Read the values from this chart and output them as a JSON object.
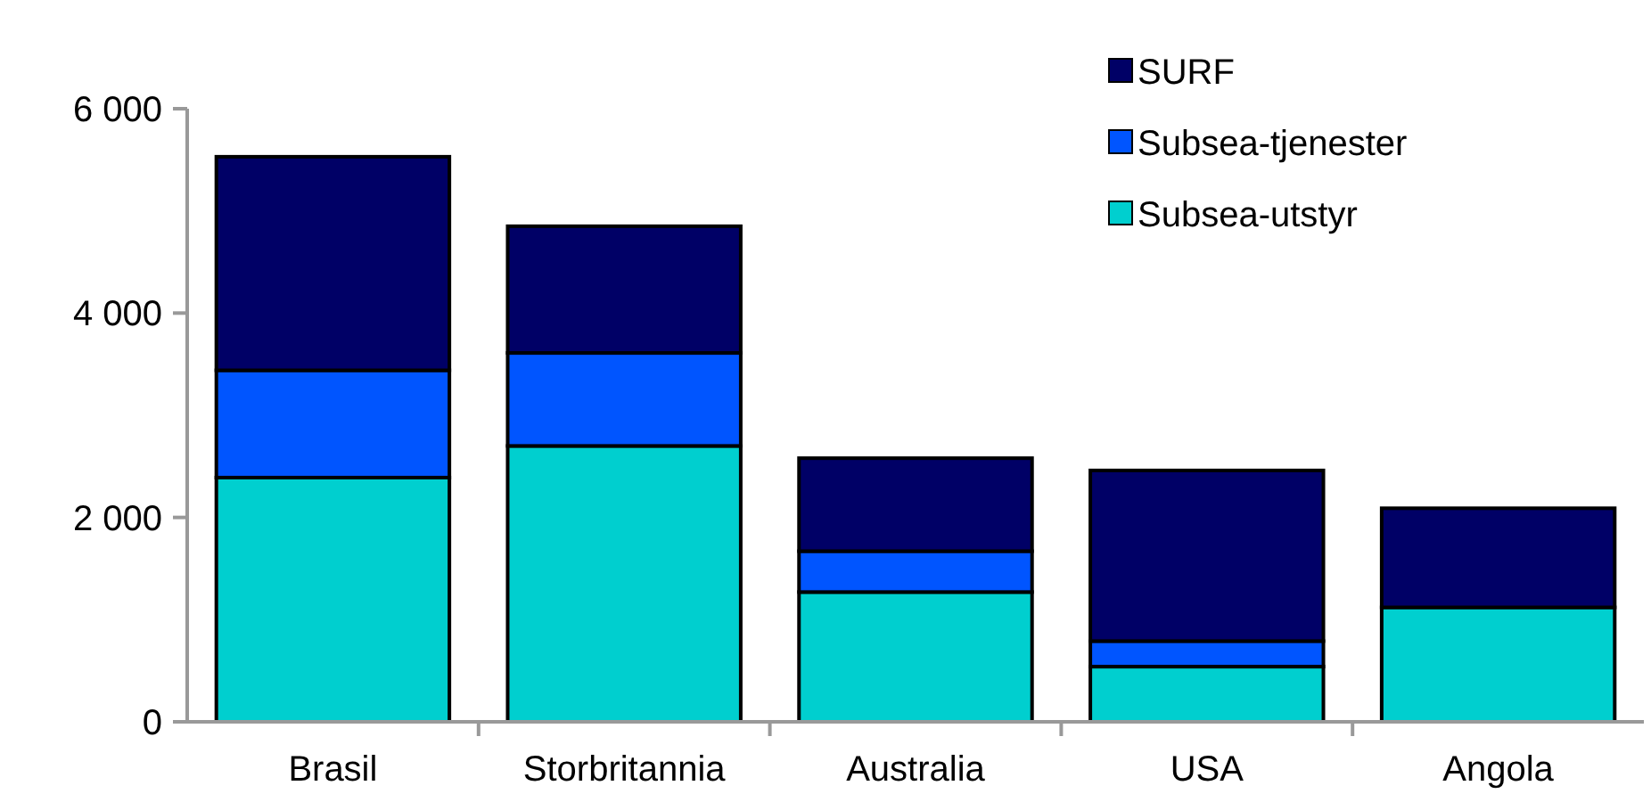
{
  "chart_data": {
    "type": "bar",
    "stacked": true,
    "categories": [
      "Brasil",
      "Storbritannia",
      "Australia",
      "USA",
      "Angola"
    ],
    "series": [
      {
        "name": "Subsea-utstyr",
        "color": "#00cfcf",
        "values": [
          2390,
          2700,
          1270,
          540,
          1120
        ]
      },
      {
        "name": "Subsea-tjenester",
        "color": "#0055ff",
        "values": [
          1050,
          910,
          400,
          250,
          0
        ]
      },
      {
        "name": "SURF",
        "color": "#000066",
        "values": [
          2090,
          1240,
          910,
          1670,
          970
        ]
      }
    ],
    "ylim": [
      0,
      6000
    ],
    "yticks": [
      {
        "value": 0,
        "label": "0"
      },
      {
        "value": 2000,
        "label": "2 000"
      },
      {
        "value": 4000,
        "label": "4 000"
      },
      {
        "value": 6000,
        "label": "6 000"
      }
    ],
    "legend": "top right"
  }
}
